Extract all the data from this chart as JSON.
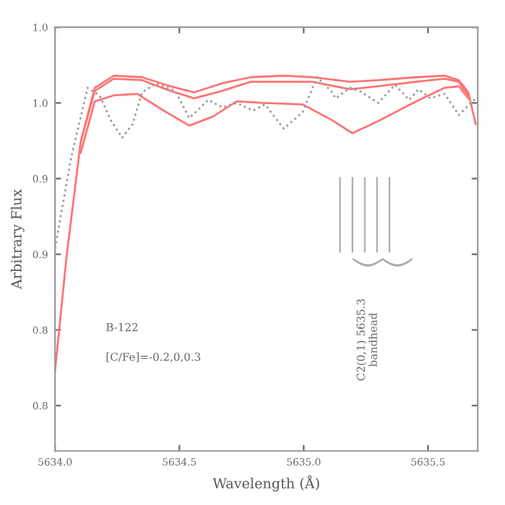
{
  "chart_data": {
    "type": "line",
    "xlabel": "Wavelength (Å)",
    "ylabel": "Arbitrary Flux",
    "xlim": [
      5634.0,
      5635.7
    ],
    "ylim": [
      0.77,
      1.05
    ],
    "xticks": [
      {
        "value": 5634.0,
        "label": "5634.0"
      },
      {
        "value": 5634.5,
        "label": "5634.5"
      },
      {
        "value": 5635.0,
        "label": "5635.0"
      },
      {
        "value": 5635.5,
        "label": "5635.5"
      }
    ],
    "yticks": [
      {
        "value": 1.05,
        "label": "1.0"
      },
      {
        "value": 1.0,
        "label": "1.0"
      },
      {
        "value": 0.95,
        "label": "0.9"
      },
      {
        "value": 0.9,
        "label": "0.9"
      },
      {
        "value": 0.85,
        "label": "0.8"
      },
      {
        "value": 0.8,
        "label": "0.8"
      }
    ],
    "grid": false,
    "legend": false,
    "marker": "none",
    "ref_lines": [
      {
        "axis": "x",
        "value": 5635.146,
        "color": "#aaaaaa"
      },
      {
        "axis": "x",
        "value": 5635.196,
        "color": "#aaaaaa"
      },
      {
        "axis": "x",
        "value": 5635.246,
        "color": "#aaaaaa"
      },
      {
        "axis": "x",
        "value": 5635.295,
        "color": "#aaaaaa"
      },
      {
        "axis": "x",
        "value": 5635.345,
        "color": "#aaaaaa"
      }
    ],
    "annotations": [
      "B-122",
      "[C/Fe]=-0.2,0,0.3",
      "C2(0,1) 5635.3\nbandhead"
    ],
    "series": [
      {
        "color": "#ff7373",
        "line_style": "solid",
        "x": [
          5634.0,
          5634.046,
          5634.103,
          5634.16,
          5634.236,
          5634.35,
          5634.464,
          5634.559,
          5634.673,
          5634.787,
          5634.92,
          5635.034,
          5635.186,
          5635.3,
          5635.452,
          5635.567,
          5635.624,
          5635.662,
          5635.692
        ],
        "values": [
          0.823,
          0.898,
          0.974,
          1.01,
          1.018,
          1.017,
          1.011,
          1.007,
          1.013,
          1.017,
          1.018,
          1.017,
          1.014,
          1.015,
          1.017,
          1.018,
          1.015,
          1.007,
          0.986
        ]
      },
      {
        "color": "#ff7373",
        "line_style": "solid",
        "x": [
          5634.103,
          5634.16,
          5634.236,
          5634.35,
          5634.464,
          5634.559,
          5634.673,
          5634.787,
          5634.92,
          5635.034,
          5635.186,
          5635.3,
          5635.452,
          5635.567,
          5635.624,
          5635.662
        ],
        "values": [
          0.974,
          1.008,
          1.016,
          1.015,
          1.008,
          1.003,
          1.008,
          1.014,
          1.014,
          1.014,
          1.009,
          1.011,
          1.014,
          1.016,
          1.014,
          1.005
        ]
      },
      {
        "color": "#ff7373",
        "line_style": "solid",
        "x": [
          5634.103,
          5634.16,
          5634.236,
          5634.331,
          5634.426,
          5634.54,
          5634.635,
          5634.73,
          5634.844,
          5634.996,
          5635.11,
          5635.196,
          5635.3,
          5635.452,
          5635.567,
          5635.624,
          5635.662
        ],
        "values": [
          0.967,
          1.001,
          1.005,
          1.006,
          0.996,
          0.985,
          0.991,
          1.001,
          1.0,
          0.999,
          0.989,
          0.98,
          0.988,
          1.001,
          1.01,
          1.011,
          1.003
        ]
      },
      {
        "color": "#999999",
        "line_style": "dotted",
        "x": [
          5634.0,
          5634.065,
          5634.131,
          5634.179,
          5634.226,
          5634.27,
          5634.312,
          5634.35,
          5634.407,
          5634.483,
          5634.54,
          5634.616,
          5634.673,
          5634.73,
          5634.797,
          5634.844,
          5634.92,
          5634.996,
          5635.053,
          5635.11,
          5635.129,
          5635.186,
          5635.224,
          5635.3,
          5635.367,
          5635.424,
          5635.462,
          5635.51,
          5635.567,
          5635.624,
          5635.692
        ],
        "values": [
          0.904,
          0.964,
          1.01,
          1.005,
          0.988,
          0.977,
          0.986,
          1.007,
          1.013,
          1.008,
          0.99,
          1.002,
          0.997,
          1.0,
          0.995,
          0.999,
          0.983,
          0.994,
          1.017,
          1.008,
          1.003,
          1.01,
          1.008,
          1.0,
          1.012,
          1.002,
          1.009,
          1.003,
          1.006,
          0.992,
          1.003
        ]
      }
    ]
  }
}
